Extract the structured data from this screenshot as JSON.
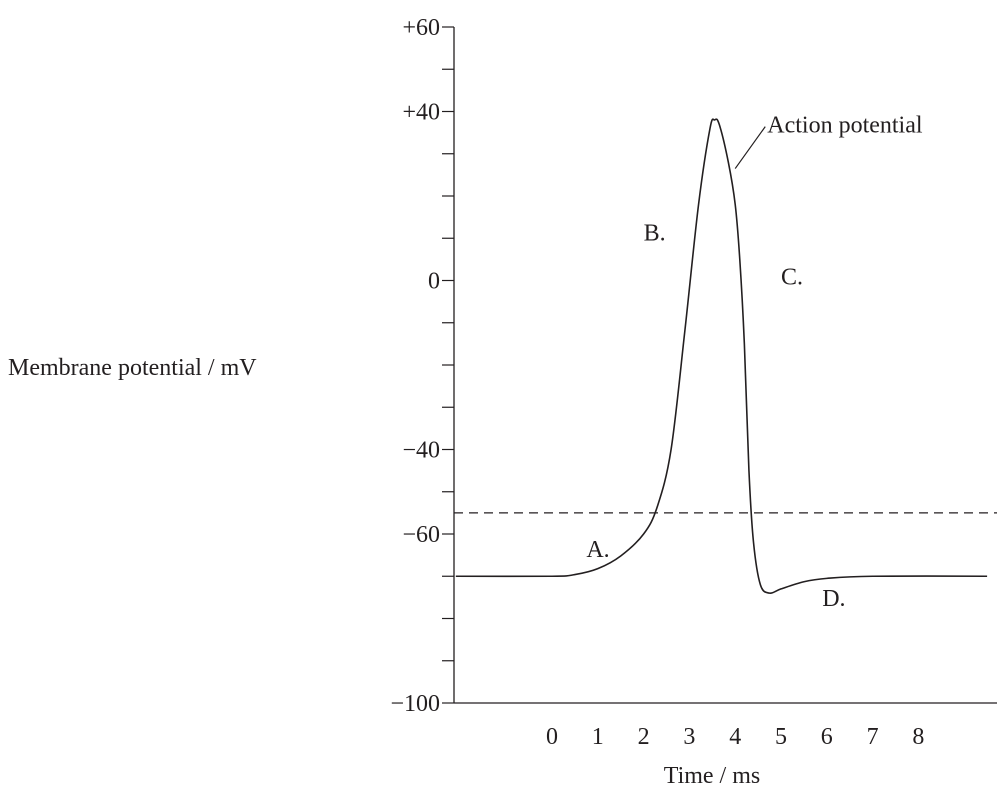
{
  "chart_data": {
    "type": "line",
    "title": "",
    "xlabel": "Time / ms",
    "ylabel": "Membrane potential / mV",
    "xlim": [
      -2.1,
      9.5
    ],
    "ylim": [
      -100,
      60
    ],
    "x_ticks": [
      0,
      1,
      2,
      3,
      4,
      5,
      6,
      7,
      8
    ],
    "y_ticks_labeled": [
      {
        "value": 60,
        "text": "+60"
      },
      {
        "value": 40,
        "text": "+40"
      },
      {
        "value": 0,
        "text": "0"
      },
      {
        "value": -40,
        "text": "−40"
      },
      {
        "value": -60,
        "text": "−60"
      },
      {
        "value": -100,
        "text": "−100"
      }
    ],
    "y_minor_step": 10,
    "grid": false,
    "threshold_line": {
      "y": -55,
      "style": "dashed"
    },
    "series": [
      {
        "name": "Action potential",
        "points": [
          [
            -2.1,
            -70
          ],
          [
            0,
            -70
          ],
          [
            0.5,
            -69.6
          ],
          [
            1.0,
            -68.2
          ],
          [
            1.5,
            -65.2
          ],
          [
            2.0,
            -60
          ],
          [
            2.3,
            -53.5
          ],
          [
            2.6,
            -40
          ],
          [
            2.9,
            -12
          ],
          [
            3.2,
            18
          ],
          [
            3.45,
            36
          ],
          [
            3.55,
            38
          ],
          [
            3.65,
            37
          ],
          [
            3.85,
            28
          ],
          [
            4.0,
            18
          ],
          [
            4.1,
            5
          ],
          [
            4.2,
            -15
          ],
          [
            4.3,
            -45
          ],
          [
            4.4,
            -62
          ],
          [
            4.55,
            -72
          ],
          [
            4.75,
            -74
          ],
          [
            5.0,
            -73
          ],
          [
            5.5,
            -71.3
          ],
          [
            6.0,
            -70.5
          ],
          [
            7.0,
            -70
          ],
          [
            9.5,
            -70
          ]
        ]
      }
    ],
    "annotations": [
      {
        "text": "A.",
        "x": 0.75,
        "y": -65.5
      },
      {
        "text": "B.",
        "x": 2.0,
        "y": 9.5
      },
      {
        "text": "C.",
        "x": 5.0,
        "y": -1
      },
      {
        "text": "D.",
        "x": 5.9,
        "y": -77
      },
      {
        "text": "Action potential",
        "x": 4.7,
        "y": 35,
        "pointer_to": [
          4.0,
          26.5
        ]
      }
    ]
  }
}
